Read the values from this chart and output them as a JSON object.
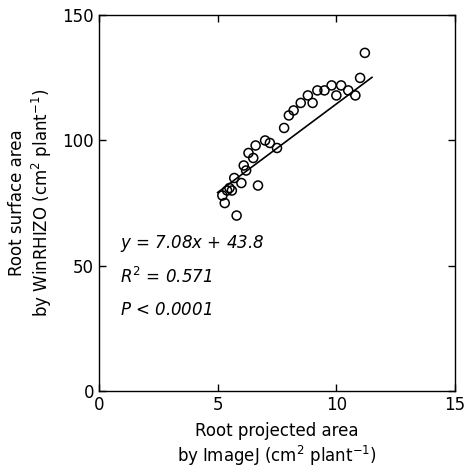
{
  "x_data": [
    5.2,
    5.3,
    5.4,
    5.5,
    5.6,
    5.7,
    5.8,
    6.0,
    6.1,
    6.2,
    6.3,
    6.5,
    6.6,
    6.7,
    7.0,
    7.2,
    7.5,
    7.8,
    8.0,
    8.2,
    8.5,
    8.8,
    9.0,
    9.2,
    9.5,
    9.8,
    10.0,
    10.2,
    10.5,
    10.8,
    11.0,
    11.2
  ],
  "y_data": [
    78,
    75,
    80,
    81,
    80,
    85,
    70,
    83,
    90,
    88,
    95,
    93,
    98,
    82,
    100,
    99,
    97,
    105,
    110,
    112,
    115,
    118,
    115,
    120,
    120,
    122,
    118,
    122,
    120,
    118,
    125,
    135
  ],
  "slope": 7.08,
  "intercept": 43.8,
  "r2": 0.571,
  "xlim": [
    0,
    15
  ],
  "ylim": [
    0,
    150
  ],
  "xticks": [
    0,
    5,
    10,
    15
  ],
  "yticks": [
    0,
    50,
    100,
    150
  ],
  "xlabel_line1": "Root projected area",
  "xlabel_line2": "by ImageJ (cm$^2$ plant$^{-1}$)",
  "ylabel_line1": "Root surface area",
  "ylabel_line2": "by WinRHIZO (cm$^2$ plant$^{-1}$)",
  "eq_text": "$y$ = 7.08$x$ + 43.8",
  "r2_text": "$R^2$ = 0.571",
  "p_text": "$P$ < 0.0001",
  "line_color": "#000000",
  "marker_color": "#000000",
  "background_color": "#ffffff",
  "marker_size": 6.5,
  "line_width": 1.2,
  "fig_width": 4.74,
  "fig_height": 4.76,
  "fontsize": 12
}
